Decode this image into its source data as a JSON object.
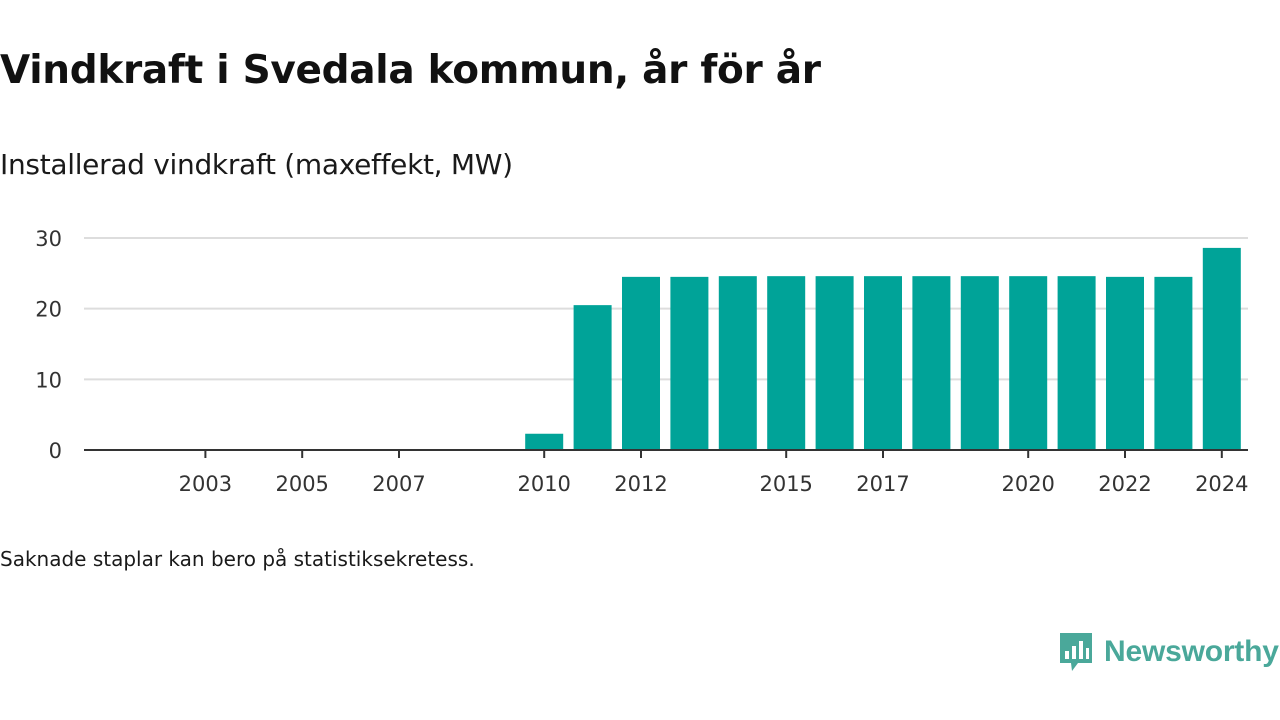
{
  "header": {
    "title": "Vindkraft i Svedala kommun, år för år",
    "subtitle": "Installerad vindkraft (maxeffekt, MW)"
  },
  "footer": {
    "note": "Saknade staplar kan bero på statistiksekretess.",
    "brand": "Newsworthy",
    "brand_icon": "newsworthy-logo-icon"
  },
  "colors": {
    "bar": "#00a398",
    "grid": "#dddddd",
    "axis": "#333333",
    "brand": "#4aa89a"
  },
  "chart_data": {
    "type": "bar",
    "title": "Vindkraft i Svedala kommun, år för år",
    "ylabel": "Installerad vindkraft (maxeffekt, MW)",
    "xlabel": "",
    "ylim": [
      0,
      30
    ],
    "yticks": [
      0,
      10,
      20,
      30
    ],
    "grid": true,
    "categories": [
      "2002",
      "2003",
      "2004",
      "2005",
      "2006",
      "2007",
      "2008",
      "2009",
      "2010",
      "2011",
      "2012",
      "2013",
      "2014",
      "2015",
      "2016",
      "2017",
      "2018",
      "2019",
      "2020",
      "2021",
      "2022",
      "2023",
      "2024"
    ],
    "xtick_labels": [
      "2003",
      "2005",
      "2007",
      "2010",
      "2012",
      "2015",
      "2017",
      "2020",
      "2022",
      "2024"
    ],
    "values": [
      null,
      null,
      null,
      null,
      null,
      null,
      null,
      null,
      2.3,
      20.5,
      24.5,
      24.5,
      24.6,
      24.6,
      24.6,
      24.6,
      24.6,
      24.6,
      24.6,
      24.6,
      24.5,
      24.5,
      28.6
    ]
  }
}
